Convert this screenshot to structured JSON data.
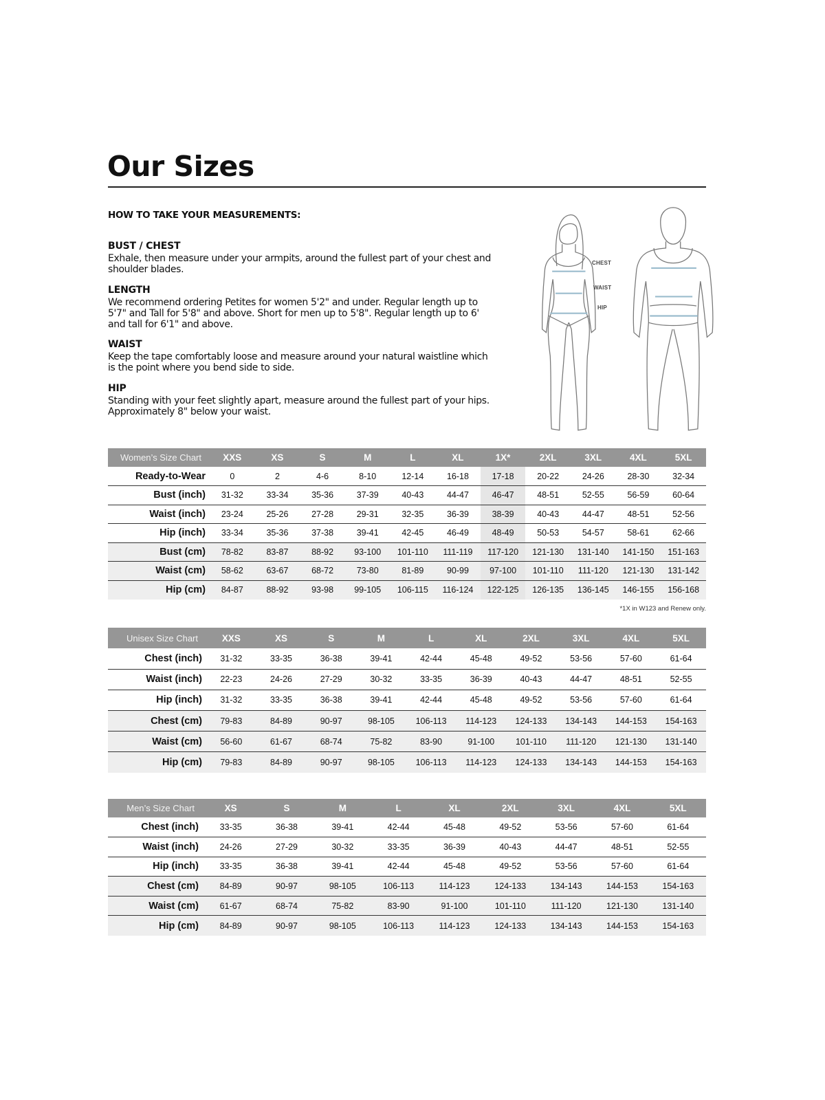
{
  "page": {
    "title": "Our Sizes",
    "how_to_heading": "HOW TO TAKE YOUR MEASUREMENTS:",
    "sections": [
      {
        "heading": "BUST / CHEST",
        "text": "Exhale, then measure under your armpits, around the fullest part of your chest and shoulder blades."
      },
      {
        "heading": "LENGTH",
        "text": "We recommend ordering Petites for women 5'2\" and under. Regular length up to 5'7\" and Tall for 5'8\" and above. Short for men up to 5'8\". Regular length up to 6' and tall for 6'1\" and above."
      },
      {
        "heading": "WAIST",
        "text": "Keep the tape comfortably loose and measure around your natural waistline which is the point where you bend side to side."
      },
      {
        "heading": "HIP",
        "text": "Standing with your feet slightly apart, measure around the fullest part of your hips. Approximately 8\" below your waist."
      }
    ],
    "figure_labels": {
      "chest": "CHEST",
      "waist": "WAIST",
      "hip": "HIP"
    },
    "measure_line_color": "#9bbccd"
  },
  "tables": [
    {
      "id": "womens",
      "title": "Women’s Size Chart",
      "sizes": [
        "XXS",
        "XS",
        "S",
        "M",
        "L",
        "XL",
        "1X*",
        "2XL",
        "3XL",
        "4XL",
        "5XL"
      ],
      "highlight_col": 6,
      "rows": [
        {
          "label": "Ready-to-Wear",
          "values": [
            "0",
            "2",
            "4-6",
            "8-10",
            "12-14",
            "16-18",
            "17-18",
            "20-22",
            "24-26",
            "28-30",
            "32-34"
          ]
        },
        {
          "label": "Bust (inch)",
          "values": [
            "31-32",
            "33-34",
            "35-36",
            "37-39",
            "40-43",
            "44-47",
            "46-47",
            "48-51",
            "52-55",
            "56-59",
            "60-64"
          ]
        },
        {
          "label": "Waist (inch)",
          "values": [
            "23-24",
            "25-26",
            "27-28",
            "29-31",
            "32-35",
            "36-39",
            "38-39",
            "40-43",
            "44-47",
            "48-51",
            "52-56"
          ]
        },
        {
          "label": "Hip (inch)",
          "values": [
            "33-34",
            "35-36",
            "37-38",
            "39-41",
            "42-45",
            "46-49",
            "48-49",
            "50-53",
            "54-57",
            "58-61",
            "62-66"
          ]
        },
        {
          "label": "Bust (cm)",
          "values": [
            "78-82",
            "83-87",
            "88-92",
            "93-100",
            "101-110",
            "111-119",
            "117-120",
            "121-130",
            "131-140",
            "141-150",
            "151-163"
          ]
        },
        {
          "label": "Waist (cm)",
          "values": [
            "58-62",
            "63-67",
            "68-72",
            "73-80",
            "81-89",
            "90-99",
            "97-100",
            "101-110",
            "111-120",
            "121-130",
            "131-142"
          ]
        },
        {
          "label": "Hip (cm)",
          "values": [
            "84-87",
            "88-92",
            "93-98",
            "99-105",
            "106-115",
            "116-124",
            "122-125",
            "126-135",
            "136-145",
            "146-155",
            "156-168"
          ]
        }
      ],
      "footnote": "*1X in W123 and Renew only."
    },
    {
      "id": "unisex",
      "title": "Unisex Size Chart",
      "sizes": [
        "XXS",
        "XS",
        "S",
        "M",
        "L",
        "XL",
        "2XL",
        "3XL",
        "4XL",
        "5XL"
      ],
      "rows": [
        {
          "label": "Chest (inch)",
          "values": [
            "31-32",
            "33-35",
            "36-38",
            "39-41",
            "42-44",
            "45-48",
            "49-52",
            "53-56",
            "57-60",
            "61-64"
          ]
        },
        {
          "label": "Waist (inch)",
          "values": [
            "22-23",
            "24-26",
            "27-29",
            "30-32",
            "33-35",
            "36-39",
            "40-43",
            "44-47",
            "48-51",
            "52-55"
          ]
        },
        {
          "label": "Hip (inch)",
          "values": [
            "31-32",
            "33-35",
            "36-38",
            "39-41",
            "42-44",
            "45-48",
            "49-52",
            "53-56",
            "57-60",
            "61-64"
          ]
        },
        {
          "label": "Chest (cm)",
          "values": [
            "79-83",
            "84-89",
            "90-97",
            "98-105",
            "106-113",
            "114-123",
            "124-133",
            "134-143",
            "144-153",
            "154-163"
          ]
        },
        {
          "label": "Waist (cm)",
          "values": [
            "56-60",
            "61-67",
            "68-74",
            "75-82",
            "83-90",
            "91-100",
            "101-110",
            "111-120",
            "121-130",
            "131-140"
          ]
        },
        {
          "label": "Hip (cm)",
          "values": [
            "79-83",
            "84-89",
            "90-97",
            "98-105",
            "106-113",
            "114-123",
            "124-133",
            "134-143",
            "144-153",
            "154-163"
          ]
        }
      ]
    },
    {
      "id": "mens",
      "title": "Men’s Size Chart",
      "sizes": [
        "XS",
        "S",
        "M",
        "L",
        "XL",
        "2XL",
        "3XL",
        "4XL",
        "5XL"
      ],
      "rows": [
        {
          "label": "Chest (inch)",
          "values": [
            "33-35",
            "36-38",
            "39-41",
            "42-44",
            "45-48",
            "49-52",
            "53-56",
            "57-60",
            "61-64"
          ]
        },
        {
          "label": "Waist (inch)",
          "values": [
            "24-26",
            "27-29",
            "30-32",
            "33-35",
            "36-39",
            "40-43",
            "44-47",
            "48-51",
            "52-55"
          ]
        },
        {
          "label": "Hip (inch)",
          "values": [
            "33-35",
            "36-38",
            "39-41",
            "42-44",
            "45-48",
            "49-52",
            "53-56",
            "57-60",
            "61-64"
          ]
        },
        {
          "label": "Chest (cm)",
          "values": [
            "84-89",
            "90-97",
            "98-105",
            "106-113",
            "114-123",
            "124-133",
            "134-143",
            "144-153",
            "154-163"
          ]
        },
        {
          "label": "Waist (cm)",
          "values": [
            "61-67",
            "68-74",
            "75-82",
            "83-90",
            "91-100",
            "101-110",
            "111-120",
            "121-130",
            "131-140"
          ]
        },
        {
          "label": "Hip (cm)",
          "values": [
            "84-89",
            "90-97",
            "98-105",
            "106-113",
            "114-123",
            "124-133",
            "134-143",
            "144-153",
            "154-163"
          ]
        }
      ]
    }
  ]
}
